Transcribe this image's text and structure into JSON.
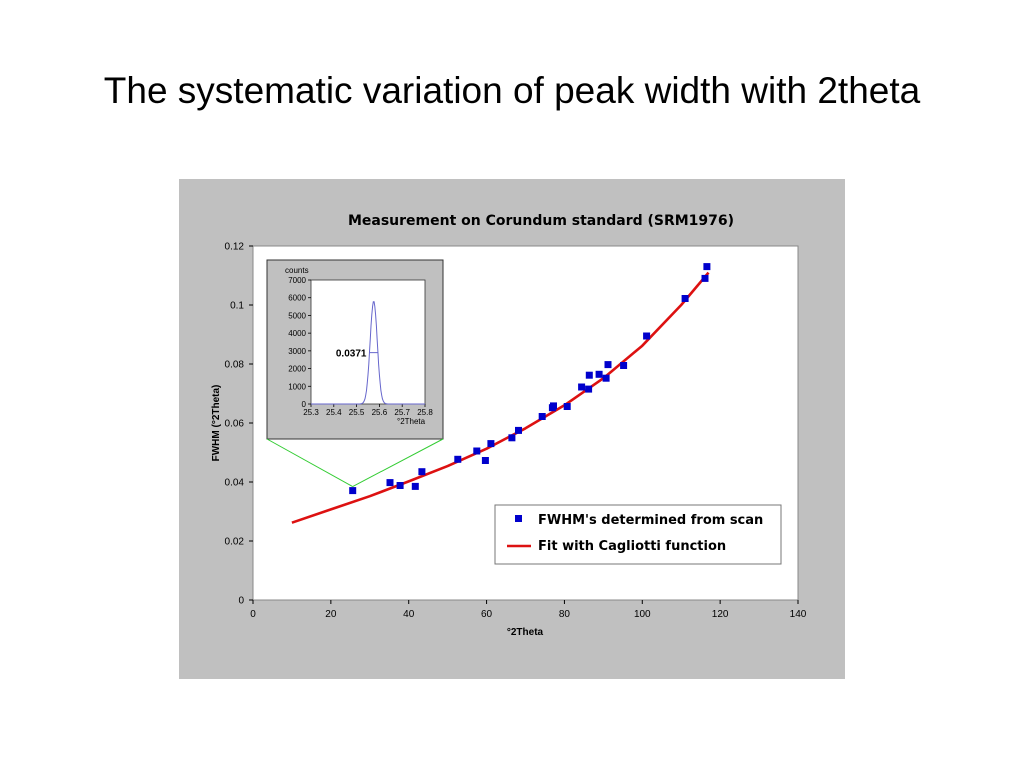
{
  "slide": {
    "title": "The systematic variation of peak width with 2theta"
  },
  "colors": {
    "panel": "#c0c0c0",
    "points": "#0000cc",
    "fit": "#dd1111",
    "inset_curve": "#6666cc",
    "connector": "#33cc33"
  },
  "chart_data": [
    {
      "type": "scatter",
      "title": "Measurement on Corundum standard (SRM1976)",
      "xlabel": "°2Theta",
      "ylabel": "FWHM (°2Theta)",
      "xlim": [
        0,
        140
      ],
      "ylim": [
        0,
        0.12
      ],
      "xticks": [
        "0",
        "20",
        "40",
        "60",
        "80",
        "100",
        "120",
        "140"
      ],
      "yticks": [
        "0",
        "0.02",
        "0.04",
        "0.06",
        "0.08",
        "0.1",
        "0.12"
      ],
      "grid": false,
      "legend_position": "lower-right",
      "series": [
        {
          "name": "FWHM's determined from scan",
          "kind": "points",
          "x": [
            25.6,
            35.2,
            37.8,
            41.7,
            43.4,
            52.6,
            57.5,
            59.7,
            61.1,
            66.5,
            68.2,
            74.3,
            76.9,
            77.2,
            80.7,
            84.4,
            86.2,
            86.4,
            88.9,
            90.7,
            91.2,
            95.2,
            101.1,
            111.0,
            116.1,
            116.6
          ],
          "y": [
            0.0371,
            0.0398,
            0.0388,
            0.0385,
            0.0435,
            0.0477,
            0.0505,
            0.0473,
            0.053,
            0.055,
            0.0575,
            0.0622,
            0.0652,
            0.0658,
            0.0656,
            0.0722,
            0.0715,
            0.0762,
            0.0765,
            0.0752,
            0.0798,
            0.0795,
            0.0895,
            0.1022,
            0.109,
            0.113
          ]
        },
        {
          "name": "Fit with Cagliotti function",
          "kind": "line",
          "x": [
            10,
            20,
            30,
            40,
            50,
            60,
            70,
            80,
            90,
            100,
            110,
            117
          ],
          "y": [
            0.0262,
            0.0307,
            0.0352,
            0.0402,
            0.0454,
            0.0513,
            0.0582,
            0.066,
            0.0752,
            0.0862,
            0.1,
            0.111
          ]
        }
      ]
    },
    {
      "type": "line",
      "role": "inset",
      "ylabel": "counts",
      "xlabel": "°2Theta",
      "xlim": [
        25.3,
        25.8
      ],
      "ylim": [
        0,
        7000
      ],
      "xticks": [
        "25.3",
        "25.4",
        "25.5",
        "25.6",
        "25.7",
        "25.8"
      ],
      "yticks": [
        "0",
        "1000",
        "2000",
        "3000",
        "4000",
        "5000",
        "6000",
        "7000"
      ],
      "peak_center": 25.575,
      "peak_height": 5800,
      "fwhm": 0.0371,
      "annotation": "0.0371",
      "linked_point": {
        "x": 25.6,
        "y": 0.0371
      }
    }
  ]
}
